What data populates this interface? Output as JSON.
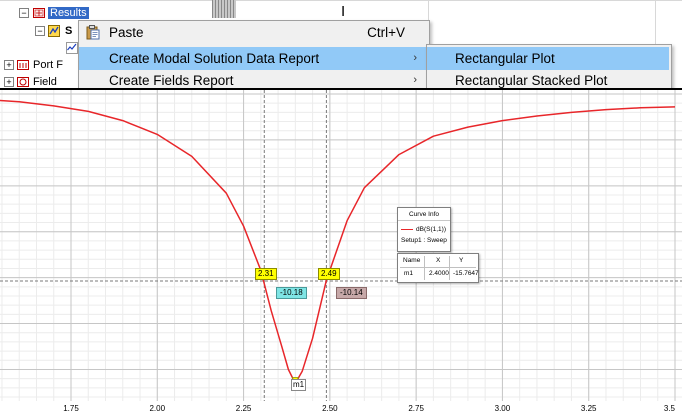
{
  "tree": {
    "results_label": "Results",
    "s_label": "S",
    "port_label": "Port F",
    "field_label": "Field"
  },
  "context_menu": {
    "items": [
      {
        "label": "Paste",
        "shortcut": "Ctrl+V"
      },
      {
        "label": "Create Modal Solution Data Report",
        "arrow": "›"
      },
      {
        "label": "Create Fields Report",
        "arrow": "›"
      }
    ]
  },
  "submenu": {
    "items": [
      {
        "label": "Rectangular Plot"
      },
      {
        "label": "Rectangular Stacked Plot"
      }
    ]
  },
  "cursor_glyph": "I",
  "colors": {
    "menu_highlight": "#91c9f7",
    "selection": "#3169c6",
    "curve": "#e8262a",
    "marker_yellow": "#ffff00",
    "marker_cyan": "#7fe5e5",
    "marker_rose": "#c7a9a9"
  },
  "chart_data": {
    "type": "line",
    "x_ticks": [
      "1.75",
      "2.00",
      "2.25",
      "2.50",
      "2.75",
      "3.00",
      "3.25",
      "3.5"
    ],
    "x_range": [
      1.5,
      3.5
    ],
    "y_range": [
      -16.5,
      0
    ],
    "series": [
      {
        "name": "dB(S(1,1))",
        "x": [
          1.5,
          1.6,
          1.7,
          1.8,
          1.9,
          2.0,
          2.1,
          2.2,
          2.25,
          2.3,
          2.33,
          2.36,
          2.38,
          2.4,
          2.42,
          2.45,
          2.49,
          2.55,
          2.6,
          2.7,
          2.8,
          2.9,
          3.0,
          3.1,
          3.2,
          3.3,
          3.4,
          3.5
        ],
        "y": [
          -0.3,
          -0.42,
          -0.65,
          -0.95,
          -1.45,
          -2.2,
          -3.4,
          -5.4,
          -7.2,
          -9.6,
          -11.8,
          -13.7,
          -15.0,
          -15.76,
          -15.1,
          -13.3,
          -10.14,
          -6.9,
          -5.1,
          -3.3,
          -2.3,
          -1.8,
          -1.45,
          -1.2,
          -1.0,
          -0.85,
          -0.75,
          -0.7
        ]
      }
    ],
    "markers": [
      {
        "label": "2.31",
        "value": "-10.18"
      },
      {
        "label": "2.49",
        "value": "-10.14"
      }
    ],
    "min_marker": {
      "name": "m1",
      "x": 2.4,
      "y": -15.7647
    },
    "marker_positions": {
      "m_left_x": 2.31,
      "m_left_y": -10.18,
      "m_right_x": 2.49,
      "m_right_y": -10.14
    },
    "curve_info": {
      "title": "Curve Info",
      "trace": "dB(S(1,1))",
      "setup": "Setup1 : Sweep"
    },
    "marker_table": {
      "headers": [
        "Name",
        "X",
        "Y"
      ],
      "rows": [
        [
          "m1",
          "2.4000",
          "-15.7647"
        ]
      ]
    }
  }
}
